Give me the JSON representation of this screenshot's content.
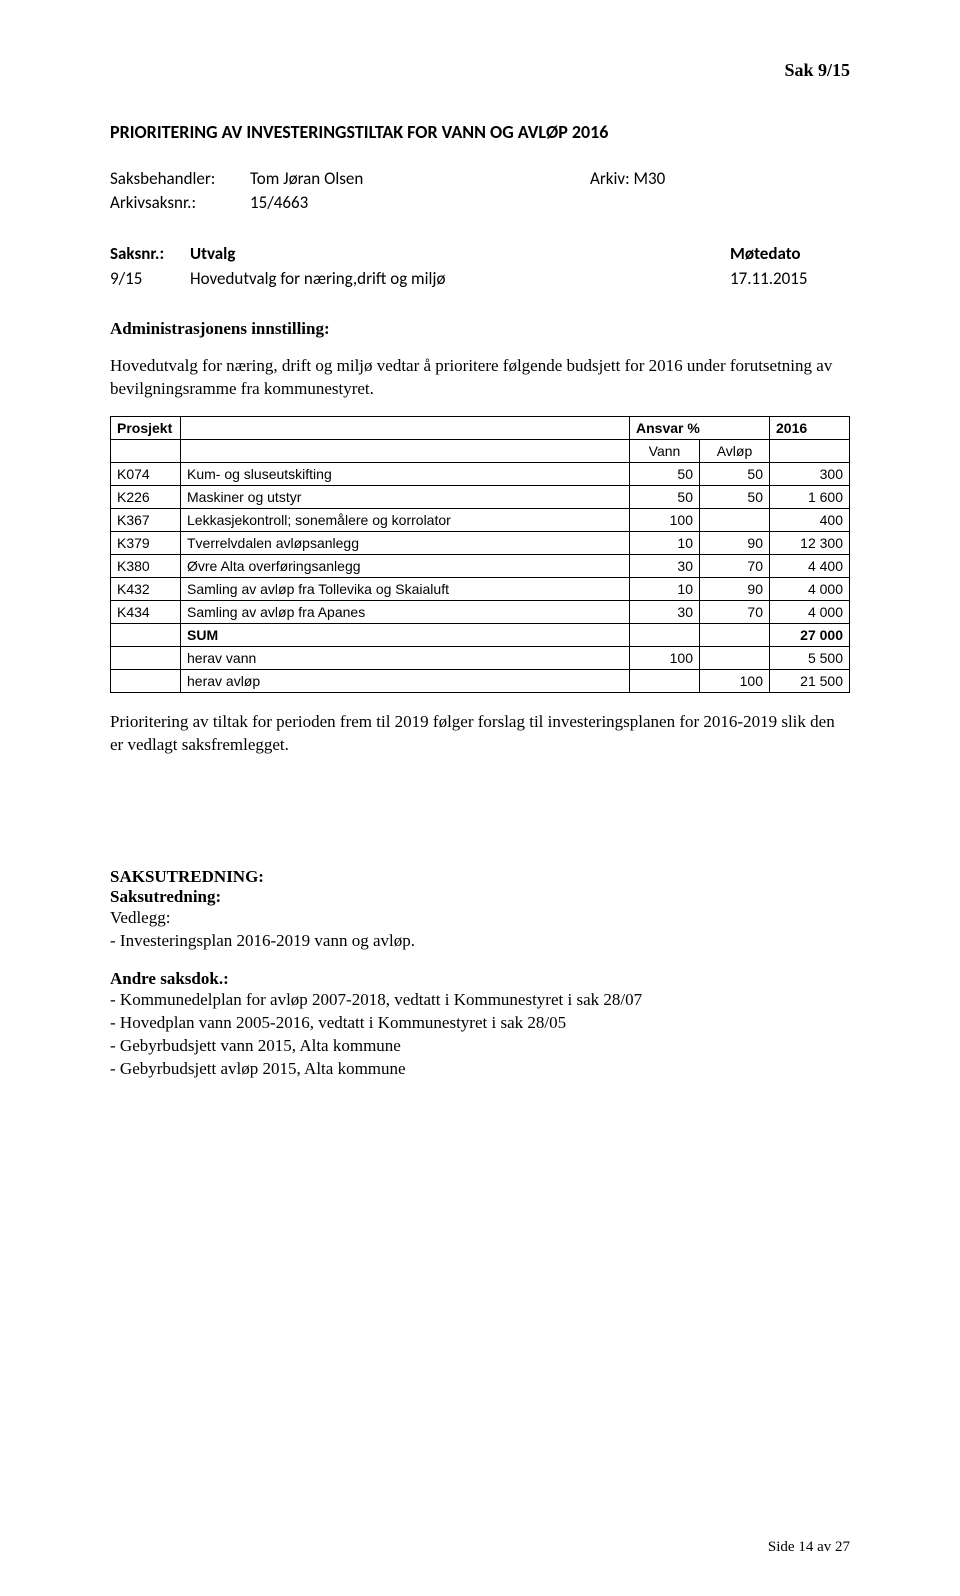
{
  "sak_header": "Sak  9/15",
  "title": "PRIORITERING AV INVESTERINGSTILTAK FOR VANN OG AVLØP 2016",
  "meta": {
    "saksbehandler_label": "Saksbehandler:",
    "saksbehandler_value": "Tom Jøran Olsen",
    "arkiv_label": "Arkiv: M30",
    "arkivsaksnr_label": "Arkivsaksnr.:",
    "arkivsaksnr_value": "15/4663"
  },
  "saksnr": {
    "col1_header": "Saksnr.:",
    "col2_header": "Utvalg",
    "col3_header": "Møtedato",
    "row": {
      "num": "9/15",
      "utvalg": "Hovedutvalg for næring,drift og miljø",
      "dato": "17.11.2015"
    }
  },
  "admin_heading": "Administrasjonens innstilling:",
  "admin_text": "Hovedutvalg for næring, drift og miljø vedtar å prioritere følgende budsjett for 2016 under forutsetning av bevilgningsramme fra kommunestyret.",
  "table": {
    "header": {
      "prosjekt": "Prosjekt",
      "ansvar": "Ansvar %",
      "year": "2016",
      "vann": "Vann",
      "avlop": "Avløp"
    },
    "rows": [
      {
        "code": "K074",
        "desc": "Kum- og sluseutskifting",
        "vann": "50",
        "avlop": "50",
        "y": "300"
      },
      {
        "code": "K226",
        "desc": "Maskiner og utstyr",
        "vann": "50",
        "avlop": "50",
        "y": "1 600"
      },
      {
        "code": "K367",
        "desc": "Lekkasjekontroll; sonemålere og korrolator",
        "vann": "100",
        "avlop": "",
        "y": "400"
      },
      {
        "code": "K379",
        "desc": "Tverrelvdalen avløpsanlegg",
        "vann": "10",
        "avlop": "90",
        "y": "12 300"
      },
      {
        "code": "K380",
        "desc": "Øvre Alta overføringsanlegg",
        "vann": "30",
        "avlop": "70",
        "y": "4 400"
      },
      {
        "code": "K432",
        "desc": "Samling av avløp fra Tollevika og Skaialuft",
        "vann": "10",
        "avlop": "90",
        "y": "4 000"
      },
      {
        "code": "K434",
        "desc": "Samling av avløp fra Apanes",
        "vann": "30",
        "avlop": "70",
        "y": "4 000"
      }
    ],
    "sum": {
      "label": "SUM",
      "y": "27 000"
    },
    "herav_vann": {
      "label": "herav vann",
      "val": "100",
      "y": "5 500"
    },
    "herav_avlop": {
      "label": "herav avløp",
      "val": "100",
      "y": "21 500"
    }
  },
  "post_table_text": "Prioritering av tiltak for perioden frem til 2019 følger forslag til investeringsplanen for 2016-2019 slik den er vedlagt saksfremlegget.",
  "saksutredning_heading": "SAKSUTREDNING:",
  "saksutredning_sub": "Saksutredning:",
  "vedlegg_label": "Vedlegg:",
  "vedlegg_item": " - Investeringsplan 2016-2019 vann og avløp.",
  "andre_label": "Andre saksdok.:",
  "andre_items": [
    "- Kommunedelplan for avløp 2007-2018, vedtatt i Kommunestyret i sak 28/07",
    "- Hovedplan vann 2005-2016, vedtatt i Kommunestyret i sak 28/05",
    "- Gebyrbudsjett vann 2015, Alta kommune",
    "- Gebyrbudsjett avløp 2015, Alta kommune"
  ],
  "footer": "Side 14 av 27"
}
